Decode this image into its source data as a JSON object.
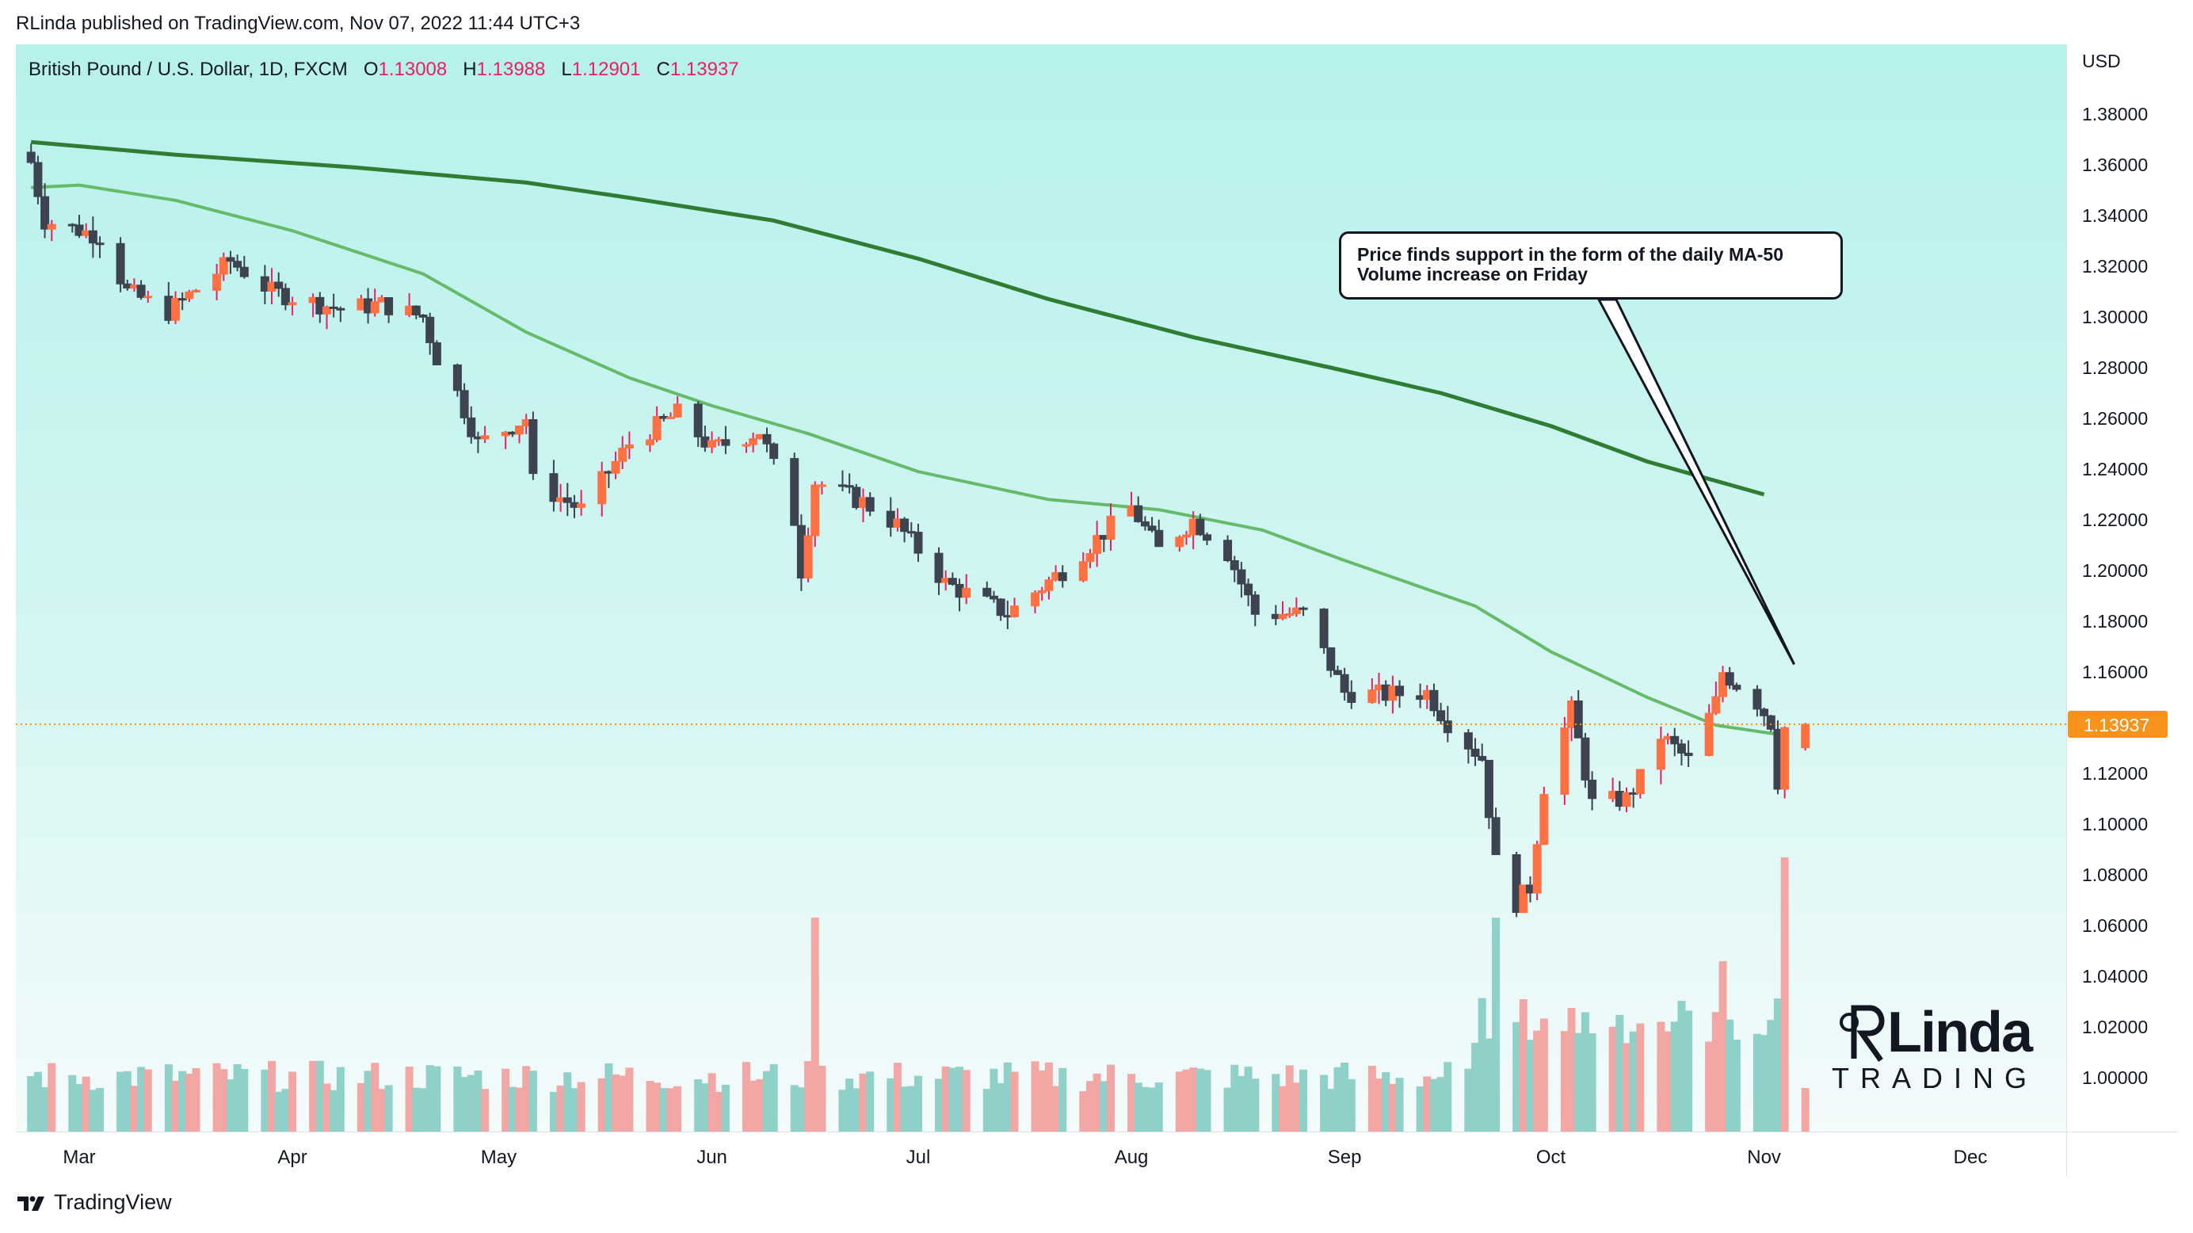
{
  "header": {
    "publisher_line": "RLinda published on TradingView.com, Nov 07, 2022 11:44 UTC+3"
  },
  "legend": {
    "symbol": "British Pound / U.S. Dollar, 1D, FXCM",
    "o_label": "O",
    "o_value": "1.13008",
    "h_label": "H",
    "h_value": "1.13988",
    "l_label": "L",
    "l_value": "1.12901",
    "c_label": "C",
    "c_value": "1.13937"
  },
  "price_axis": {
    "currency": "USD",
    "ticks": [
      "1.38000",
      "1.36000",
      "1.34000",
      "1.32000",
      "1.30000",
      "1.28000",
      "1.26000",
      "1.24000",
      "1.22000",
      "1.20000",
      "1.18000",
      "1.16000",
      "1.14000",
      "1.12000",
      "1.10000",
      "1.08000",
      "1.06000",
      "1.04000",
      "1.02000",
      "1.00000"
    ],
    "last_price_label": "1.13937"
  },
  "time_axis": {
    "months": [
      "Mar",
      "Apr",
      "May",
      "Jun",
      "Jul",
      "Aug",
      "Sep",
      "Oct",
      "Nov",
      "Dec"
    ]
  },
  "annotation": {
    "line1": "Price finds support in the form of the daily MA-50",
    "line2": "Volume increase on Friday"
  },
  "branding": {
    "footer": "TradingView",
    "logo_main": "Linda",
    "logo_sub": "TRADING"
  },
  "colors": {
    "up": "#ff7043",
    "down": "#3d4350",
    "wick_up": "#e91e63",
    "ma50": "#66bb6a",
    "ma200": "#2e7d32",
    "vol_up": "#f3a7a4",
    "vol_down": "#8fd0c8",
    "last_price": "#f7931a"
  },
  "chart_data": {
    "type": "candlestick",
    "title": "British Pound / U.S. Dollar, 1D, FXCM",
    "ylabel": "USD",
    "ylim": [
      0.98,
      1.4
    ],
    "last_price": 1.13937,
    "anchors": [
      [
        "Feb 22",
        1.361
      ],
      [
        "Feb 24",
        1.338
      ],
      [
        "Mar 4",
        1.332
      ],
      [
        "Mar 8",
        1.31
      ],
      [
        "Mar 14",
        1.302
      ],
      [
        "Mar 23",
        1.322
      ],
      [
        "Mar 29",
        1.31
      ],
      [
        "Apr 8",
        1.303
      ],
      [
        "Apr 14",
        1.305
      ],
      [
        "Apr 20",
        1.3
      ],
      [
        "Apr 22",
        1.284
      ],
      [
        "Apr 25",
        1.27
      ],
      [
        "Apr 28",
        1.25
      ],
      [
        "May 5",
        1.26
      ],
      [
        "May 6",
        1.235
      ],
      [
        "May 13",
        1.224
      ],
      [
        "May 20",
        1.25
      ],
      [
        "May 27",
        1.262
      ],
      [
        "Jun 1",
        1.248
      ],
      [
        "Jun 8",
        1.255
      ],
      [
        "Jun 13",
        1.22
      ],
      [
        "Jun 14",
        1.2
      ],
      [
        "Jun 16",
        1.235
      ],
      [
        "Jun 23",
        1.227
      ],
      [
        "Jun 28",
        1.218
      ],
      [
        "Jul 5",
        1.195
      ],
      [
        "Jul 14",
        1.183
      ],
      [
        "Jul 22",
        1.2
      ],
      [
        "Jul 28",
        1.215
      ],
      [
        "Aug 1",
        1.225
      ],
      [
        "Aug 5",
        1.208
      ],
      [
        "Aug 10",
        1.22
      ],
      [
        "Aug 15",
        1.207
      ],
      [
        "Aug 19",
        1.183
      ],
      [
        "Aug 26",
        1.183
      ],
      [
        "Sep 1",
        1.152
      ],
      [
        "Sep 7",
        1.151
      ],
      [
        "Sep 13",
        1.152
      ],
      [
        "Sep 16",
        1.14
      ],
      [
        "Sep 21",
        1.126
      ],
      [
        "Sep 23",
        1.085
      ],
      [
        "Sep 26",
        1.069
      ],
      [
        "Sep 28",
        1.075
      ],
      [
        "Sep 30",
        1.115
      ],
      [
        "Oct 4",
        1.145
      ],
      [
        "Oct 7",
        1.108
      ],
      [
        "Oct 12",
        1.11
      ],
      [
        "Oct 14",
        1.118
      ],
      [
        "Oct 17",
        1.135
      ],
      [
        "Oct 21",
        1.125
      ],
      [
        "Oct 25",
        1.148
      ],
      [
        "Oct 26",
        1.16
      ],
      [
        "Oct 31",
        1.148
      ],
      [
        "Nov 2",
        1.14
      ],
      [
        "Nov 3",
        1.117
      ],
      [
        "Nov 4",
        1.138
      ],
      [
        "Nov 7",
        1.1394
      ]
    ],
    "ma50": [
      [
        "Feb 22",
        1.351
      ],
      [
        "Mar 1",
        1.352
      ],
      [
        "Mar 15",
        1.346
      ],
      [
        "Apr 1",
        1.334
      ],
      [
        "Apr 20",
        1.317
      ],
      [
        "May 5",
        1.294
      ],
      [
        "May 20",
        1.276
      ],
      [
        "Jun 1",
        1.265
      ],
      [
        "Jun 15",
        1.254
      ],
      [
        "Jul 1",
        1.239
      ],
      [
        "Jul 20",
        1.228
      ],
      [
        "Aug 5",
        1.224
      ],
      [
        "Aug 20",
        1.216
      ],
      [
        "Sep 1",
        1.204
      ],
      [
        "Sep 20",
        1.186
      ],
      [
        "Oct 1",
        1.168
      ],
      [
        "Oct 15",
        1.15
      ],
      [
        "Oct 25",
        1.139
      ],
      [
        "Nov 4",
        1.135
      ]
    ],
    "ma200": [
      [
        "Feb 22",
        1.369
      ],
      [
        "Mar 15",
        1.364
      ],
      [
        "Apr 10",
        1.359
      ],
      [
        "May 5",
        1.353
      ],
      [
        "May 20",
        1.347
      ],
      [
        "Jun 10",
        1.338
      ],
      [
        "Jul 1",
        1.323
      ],
      [
        "Jul 20",
        1.307
      ],
      [
        "Aug 10",
        1.292
      ],
      [
        "Aug 30",
        1.28
      ],
      [
        "Sep 15",
        1.27
      ],
      [
        "Oct 1",
        1.257
      ],
      [
        "Oct 15",
        1.243
      ],
      [
        "Nov 1",
        1.23
      ]
    ],
    "volume_highlights": [
      [
        "Jun 16",
        "spike"
      ],
      [
        "Sep 23",
        "spike"
      ],
      [
        "Oct 26",
        "high"
      ],
      [
        "Nov 4",
        "spike"
      ]
    ]
  }
}
